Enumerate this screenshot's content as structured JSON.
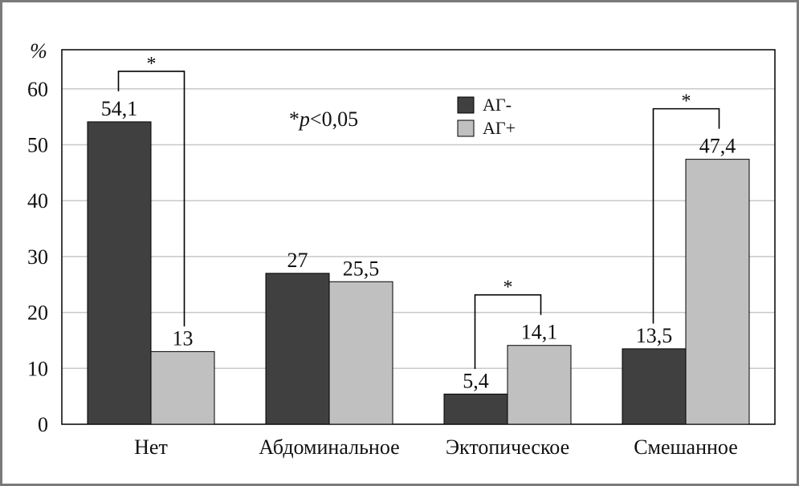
{
  "chart_data": {
    "type": "bar",
    "ylabel": "%",
    "ylim": [
      0,
      67
    ],
    "yticks": [
      0,
      10,
      20,
      30,
      40,
      50,
      60
    ],
    "categories": [
      "Нет",
      "Абдоминальное",
      "Эктопическое",
      "Смешанное"
    ],
    "series": [
      {
        "name": "АГ-",
        "values": [
          54.1,
          27,
          5.4,
          13.5
        ],
        "labels": [
          "54,1",
          "27",
          "5,4",
          "13,5"
        ],
        "color": "#404040"
      },
      {
        "name": "АГ+",
        "values": [
          13,
          25.5,
          14.1,
          47.4
        ],
        "labels": [
          "13",
          "25,5",
          "14,1",
          "47,4"
        ],
        "color": "#c0c0c0"
      }
    ],
    "significance": [
      {
        "category": 0,
        "mark": "*"
      },
      {
        "category": 2,
        "mark": "*"
      },
      {
        "category": 3,
        "mark": "*"
      }
    ],
    "annotation_prefix": "*",
    "annotation_italic": "p",
    "annotation_suffix": "<0,05",
    "grid": true,
    "legend_position": "top-center"
  }
}
